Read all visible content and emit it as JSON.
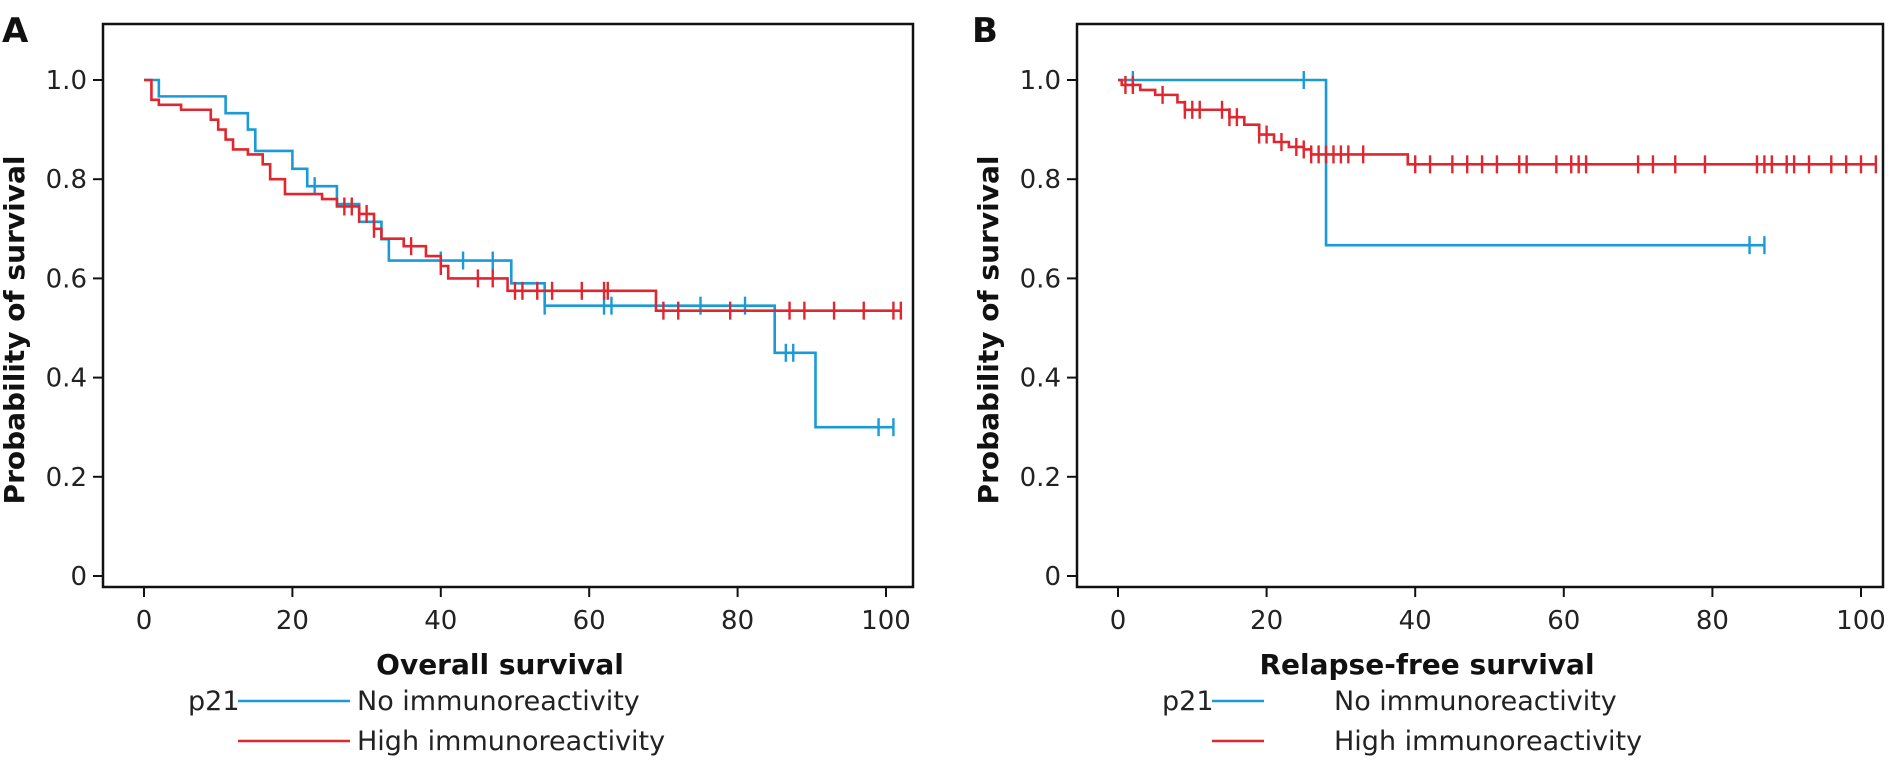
{
  "chart_data": [
    {
      "type": "line",
      "subtype": "kaplan-meier",
      "panel_label": "A",
      "xlabel": "Overall survival",
      "ylabel": "Probability of survival",
      "xlim": [
        0,
        102
      ],
      "ylim": [
        0,
        1.0
      ],
      "xticks": [
        "0",
        "20",
        "40",
        "60",
        "80",
        "100"
      ],
      "yticks": [
        "0",
        "0.2",
        "0.4",
        "0.6",
        "0.8",
        "1.0"
      ],
      "grid": false,
      "legend": {
        "title": "p21",
        "placement": "bottom"
      },
      "series": [
        {
          "name": "No immunoreactivity",
          "color": "#1a9ad6",
          "steps": [
            [
              0,
              1.0
            ],
            [
              2,
              0.967
            ],
            [
              11,
              0.933
            ],
            [
              14,
              0.9
            ],
            [
              15,
              0.857
            ],
            [
              20,
              0.821
            ],
            [
              22,
              0.786
            ],
            [
              26,
              0.75
            ],
            [
              29,
              0.714
            ],
            [
              32,
              0.679
            ],
            [
              33,
              0.636
            ],
            [
              49.5,
              0.59
            ],
            [
              54,
              0.545
            ],
            [
              85,
              0.45
            ],
            [
              90.5,
              0.3
            ]
          ],
          "end": 101,
          "censored": [
            23,
            40,
            43,
            47,
            54,
            62,
            63,
            75,
            81,
            86.5,
            87.5,
            99,
            101
          ]
        },
        {
          "name": "High immunoreactivity",
          "color": "#e0262e",
          "steps": [
            [
              0,
              1.0
            ],
            [
              1,
              0.96
            ],
            [
              2,
              0.95
            ],
            [
              5,
              0.94
            ],
            [
              9,
              0.92
            ],
            [
              10,
              0.9
            ],
            [
              11,
              0.88
            ],
            [
              12,
              0.86
            ],
            [
              14,
              0.85
            ],
            [
              16,
              0.83
            ],
            [
              17,
              0.8
            ],
            [
              19,
              0.77
            ],
            [
              24,
              0.76
            ],
            [
              26,
              0.745
            ],
            [
              29,
              0.73
            ],
            [
              31,
              0.7
            ],
            [
              32,
              0.68
            ],
            [
              35,
              0.665
            ],
            [
              38,
              0.645
            ],
            [
              40,
              0.625
            ],
            [
              41,
              0.6
            ],
            [
              49,
              0.575
            ],
            [
              69,
              0.535
            ]
          ],
          "end": 102,
          "censored": [
            27,
            28,
            29,
            30,
            31,
            36,
            40,
            45,
            47,
            50,
            51,
            53,
            55,
            59,
            62,
            62.5,
            70,
            72,
            79,
            87,
            89,
            93,
            97,
            101,
            102
          ]
        }
      ]
    },
    {
      "type": "line",
      "subtype": "kaplan-meier",
      "panel_label": "B",
      "xlabel": "Relapse-free survival",
      "ylabel": "Probability of survival",
      "xlim": [
        0,
        102
      ],
      "ylim": [
        0,
        1.0
      ],
      "xticks": [
        "0",
        "20",
        "40",
        "60",
        "80",
        "100"
      ],
      "yticks": [
        "0",
        "0.2",
        "0.4",
        "0.6",
        "0.8",
        "1.0"
      ],
      "grid": false,
      "legend": {
        "title": "p21",
        "placement": "bottom"
      },
      "series": [
        {
          "name": "No immunoreactivity",
          "color": "#1a9ad6",
          "steps": [
            [
              0,
              1.0
            ],
            [
              28,
              0.667
            ]
          ],
          "end": 87,
          "censored": [
            2,
            25,
            85,
            87
          ]
        },
        {
          "name": "High immunoreactivity",
          "color": "#e0262e",
          "steps": [
            [
              0,
              1.0
            ],
            [
              0.5,
              0.99
            ],
            [
              3,
              0.98
            ],
            [
              5,
              0.97
            ],
            [
              8,
              0.955
            ],
            [
              9,
              0.94
            ],
            [
              15,
              0.925
            ],
            [
              17,
              0.91
            ],
            [
              19,
              0.89
            ],
            [
              21,
              0.875
            ],
            [
              23,
              0.865
            ],
            [
              25,
              0.86
            ],
            [
              26,
              0.85
            ],
            [
              39,
              0.83
            ]
          ],
          "end": 102,
          "censored": [
            1,
            2,
            6,
            9,
            10,
            11,
            14,
            15,
            16,
            19,
            20,
            22,
            24,
            25,
            26,
            27,
            28,
            29,
            30,
            31,
            33,
            40,
            42,
            45,
            47,
            49,
            51,
            54,
            55,
            59,
            61,
            62,
            63,
            70,
            72,
            75,
            79,
            86,
            87,
            88,
            90,
            91,
            93,
            96,
            98,
            100,
            102
          ]
        }
      ]
    }
  ]
}
